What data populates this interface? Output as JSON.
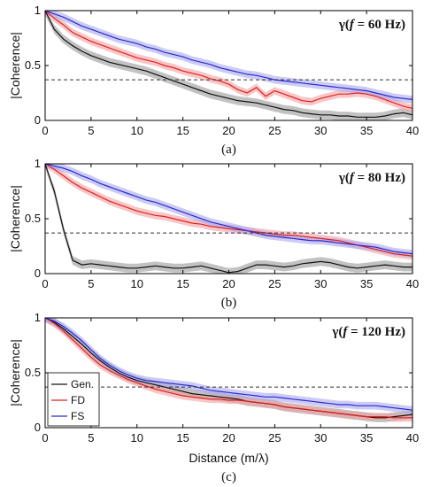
{
  "chart_data": [
    {
      "type": "line",
      "panel_label": "(a)",
      "title": "γ(f = 60 Hz)",
      "title_parts": [
        "γ(",
        "f",
        " = 60 Hz)"
      ],
      "ylabel": "|Coherence|",
      "xlabel": "",
      "xlim": [
        0,
        40
      ],
      "ylim": [
        0,
        1
      ],
      "xticks": [
        0,
        5,
        10,
        15,
        20,
        25,
        30,
        35,
        40
      ],
      "yticks": [
        0,
        0.5,
        1
      ],
      "ytick_labels": [
        "0",
        "0.5",
        "1"
      ],
      "threshold": 0.37,
      "x": [
        0,
        1,
        2,
        3,
        4,
        5,
        6,
        7,
        8,
        9,
        10,
        11,
        12,
        13,
        14,
        15,
        16,
        17,
        18,
        19,
        20,
        21,
        22,
        23,
        24,
        25,
        26,
        27,
        28,
        29,
        30,
        31,
        32,
        33,
        34,
        35,
        36,
        37,
        38,
        39,
        40
      ],
      "series": [
        {
          "name": "Gen.",
          "color": "#111111",
          "band": 0.04,
          "values": [
            1.0,
            0.83,
            0.74,
            0.68,
            0.63,
            0.59,
            0.56,
            0.53,
            0.51,
            0.49,
            0.47,
            0.45,
            0.42,
            0.39,
            0.36,
            0.33,
            0.3,
            0.27,
            0.24,
            0.22,
            0.2,
            0.18,
            0.17,
            0.16,
            0.14,
            0.12,
            0.1,
            0.09,
            0.07,
            0.06,
            0.05,
            0.05,
            0.04,
            0.04,
            0.03,
            0.03,
            0.03,
            0.04,
            0.06,
            0.07,
            0.05
          ]
        },
        {
          "name": "FD",
          "color": "#e02020",
          "band": 0.035,
          "values": [
            1.0,
            0.93,
            0.87,
            0.8,
            0.76,
            0.72,
            0.69,
            0.66,
            0.63,
            0.6,
            0.57,
            0.55,
            0.53,
            0.5,
            0.48,
            0.45,
            0.43,
            0.41,
            0.38,
            0.36,
            0.33,
            0.28,
            0.25,
            0.3,
            0.22,
            0.27,
            0.24,
            0.21,
            0.18,
            0.17,
            0.2,
            0.22,
            0.24,
            0.24,
            0.25,
            0.24,
            0.22,
            0.19,
            0.16,
            0.13,
            0.11
          ]
        },
        {
          "name": "FS",
          "color": "#2a2ad0",
          "band": 0.035,
          "values": [
            1.0,
            0.97,
            0.94,
            0.9,
            0.86,
            0.83,
            0.8,
            0.77,
            0.74,
            0.72,
            0.7,
            0.67,
            0.65,
            0.62,
            0.6,
            0.58,
            0.55,
            0.53,
            0.51,
            0.48,
            0.46,
            0.44,
            0.42,
            0.41,
            0.39,
            0.37,
            0.36,
            0.35,
            0.34,
            0.33,
            0.32,
            0.31,
            0.3,
            0.29,
            0.28,
            0.27,
            0.25,
            0.23,
            0.21,
            0.2,
            0.19
          ]
        }
      ]
    },
    {
      "type": "line",
      "panel_label": "(b)",
      "title": "γ(f = 80 Hz)",
      "title_parts": [
        "γ(",
        "f",
        " = 80 Hz)"
      ],
      "ylabel": "|Coherence|",
      "xlabel": "",
      "xlim": [
        0,
        40
      ],
      "ylim": [
        0,
        1
      ],
      "xticks": [
        0,
        5,
        10,
        15,
        20,
        25,
        30,
        35,
        40
      ],
      "yticks": [
        0,
        0.5,
        1
      ],
      "ytick_labels": [
        "0",
        "0.5",
        "1"
      ],
      "threshold": 0.37,
      "x": [
        0,
        1,
        2,
        3,
        4,
        5,
        6,
        7,
        8,
        9,
        10,
        11,
        12,
        13,
        14,
        15,
        16,
        17,
        18,
        19,
        20,
        21,
        22,
        23,
        24,
        25,
        26,
        27,
        28,
        29,
        30,
        31,
        32,
        33,
        34,
        35,
        36,
        37,
        38,
        39,
        40
      ],
      "series": [
        {
          "name": "Gen.",
          "color": "#111111",
          "band": 0.04,
          "values": [
            1.0,
            0.75,
            0.4,
            0.12,
            0.08,
            0.09,
            0.08,
            0.07,
            0.06,
            0.05,
            0.05,
            0.06,
            0.07,
            0.06,
            0.05,
            0.05,
            0.06,
            0.07,
            0.05,
            0.03,
            0.01,
            0.02,
            0.05,
            0.08,
            0.08,
            0.07,
            0.06,
            0.07,
            0.09,
            0.1,
            0.11,
            0.1,
            0.08,
            0.06,
            0.05,
            0.06,
            0.07,
            0.08,
            0.07,
            0.06,
            0.06
          ]
        },
        {
          "name": "FD",
          "color": "#e02020",
          "band": 0.035,
          "values": [
            1.0,
            0.95,
            0.89,
            0.83,
            0.78,
            0.74,
            0.7,
            0.66,
            0.63,
            0.6,
            0.57,
            0.55,
            0.53,
            0.52,
            0.5,
            0.48,
            0.46,
            0.45,
            0.43,
            0.42,
            0.41,
            0.4,
            0.39,
            0.38,
            0.37,
            0.36,
            0.35,
            0.35,
            0.34,
            0.33,
            0.32,
            0.31,
            0.3,
            0.28,
            0.26,
            0.24,
            0.22,
            0.2,
            0.18,
            0.17,
            0.16
          ]
        },
        {
          "name": "FS",
          "color": "#2a2ad0",
          "band": 0.035,
          "values": [
            1.0,
            0.98,
            0.96,
            0.93,
            0.89,
            0.86,
            0.82,
            0.79,
            0.76,
            0.73,
            0.7,
            0.67,
            0.65,
            0.62,
            0.59,
            0.56,
            0.53,
            0.5,
            0.47,
            0.45,
            0.43,
            0.41,
            0.39,
            0.37,
            0.35,
            0.34,
            0.33,
            0.32,
            0.31,
            0.3,
            0.3,
            0.29,
            0.28,
            0.27,
            0.26,
            0.25,
            0.24,
            0.22,
            0.2,
            0.19,
            0.18
          ]
        }
      ]
    },
    {
      "type": "line",
      "panel_label": "(c)",
      "title": "γ(f = 120 Hz)",
      "title_parts": [
        "γ(",
        "f",
        " = 120 Hz)"
      ],
      "ylabel": "|Coherence|",
      "xlabel": "Distance (m/λ)",
      "xlim": [
        0,
        40
      ],
      "ylim": [
        0,
        1
      ],
      "xticks": [
        0,
        5,
        10,
        15,
        20,
        25,
        30,
        35,
        40
      ],
      "yticks": [
        0,
        0.5,
        1
      ],
      "ytick_labels": [
        "0",
        "0.5",
        "1"
      ],
      "threshold": 0.37,
      "legend": {
        "placement": "lower-left",
        "entries": [
          "Gen.",
          "FD",
          "FS"
        ]
      },
      "x": [
        0,
        1,
        2,
        3,
        4,
        5,
        6,
        7,
        8,
        9,
        10,
        11,
        12,
        13,
        14,
        15,
        16,
        17,
        18,
        19,
        20,
        21,
        22,
        23,
        24,
        25,
        26,
        27,
        28,
        29,
        30,
        31,
        32,
        33,
        34,
        35,
        36,
        37,
        38,
        39,
        40
      ],
      "series": [
        {
          "name": "Gen.",
          "color": "#111111",
          "band": 0.04,
          "values": [
            1.0,
            0.96,
            0.9,
            0.83,
            0.76,
            0.68,
            0.61,
            0.55,
            0.5,
            0.46,
            0.43,
            0.41,
            0.39,
            0.37,
            0.35,
            0.33,
            0.31,
            0.3,
            0.29,
            0.28,
            0.27,
            0.26,
            0.24,
            0.23,
            0.22,
            0.21,
            0.19,
            0.18,
            0.17,
            0.16,
            0.15,
            0.14,
            0.13,
            0.12,
            0.11,
            0.1,
            0.09,
            0.09,
            0.1,
            0.11,
            0.12
          ]
        },
        {
          "name": "FD",
          "color": "#e02020",
          "band": 0.035,
          "values": [
            1.0,
            0.95,
            0.88,
            0.8,
            0.72,
            0.64,
            0.57,
            0.52,
            0.48,
            0.44,
            0.41,
            0.38,
            0.35,
            0.33,
            0.31,
            0.29,
            0.28,
            0.27,
            0.26,
            0.26,
            0.25,
            0.25,
            0.24,
            0.23,
            0.22,
            0.21,
            0.19,
            0.18,
            0.17,
            0.16,
            0.15,
            0.14,
            0.13,
            0.12,
            0.11,
            0.1,
            0.1,
            0.1,
            0.09,
            0.09,
            0.09
          ]
        },
        {
          "name": "FS",
          "color": "#2a2ad0",
          "band": 0.035,
          "values": [
            1.0,
            0.97,
            0.92,
            0.86,
            0.79,
            0.71,
            0.63,
            0.57,
            0.52,
            0.48,
            0.45,
            0.43,
            0.42,
            0.41,
            0.4,
            0.39,
            0.38,
            0.36,
            0.34,
            0.33,
            0.32,
            0.31,
            0.3,
            0.29,
            0.28,
            0.28,
            0.27,
            0.26,
            0.25,
            0.24,
            0.23,
            0.22,
            0.21,
            0.21,
            0.2,
            0.2,
            0.2,
            0.19,
            0.18,
            0.17,
            0.16
          ]
        }
      ]
    }
  ]
}
